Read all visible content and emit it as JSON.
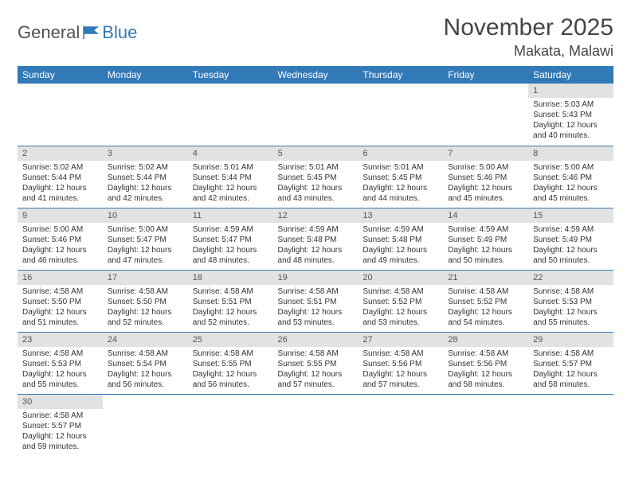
{
  "logo": {
    "text1": "General",
    "text2": "Blue"
  },
  "title": "November 2025",
  "location": "Makata, Malawi",
  "header_color": "#3279b7",
  "daynum_bg": "#e2e2e2",
  "border_color": "#3279b7",
  "weekdays": [
    "Sunday",
    "Monday",
    "Tuesday",
    "Wednesday",
    "Thursday",
    "Friday",
    "Saturday"
  ],
  "weeks": [
    [
      null,
      null,
      null,
      null,
      null,
      null,
      {
        "n": "1",
        "sunrise": "Sunrise: 5:03 AM",
        "sunset": "Sunset: 5:43 PM",
        "day": "Daylight: 12 hours and 40 minutes."
      }
    ],
    [
      {
        "n": "2",
        "sunrise": "Sunrise: 5:02 AM",
        "sunset": "Sunset: 5:44 PM",
        "day": "Daylight: 12 hours and 41 minutes."
      },
      {
        "n": "3",
        "sunrise": "Sunrise: 5:02 AM",
        "sunset": "Sunset: 5:44 PM",
        "day": "Daylight: 12 hours and 42 minutes."
      },
      {
        "n": "4",
        "sunrise": "Sunrise: 5:01 AM",
        "sunset": "Sunset: 5:44 PM",
        "day": "Daylight: 12 hours and 42 minutes."
      },
      {
        "n": "5",
        "sunrise": "Sunrise: 5:01 AM",
        "sunset": "Sunset: 5:45 PM",
        "day": "Daylight: 12 hours and 43 minutes."
      },
      {
        "n": "6",
        "sunrise": "Sunrise: 5:01 AM",
        "sunset": "Sunset: 5:45 PM",
        "day": "Daylight: 12 hours and 44 minutes."
      },
      {
        "n": "7",
        "sunrise": "Sunrise: 5:00 AM",
        "sunset": "Sunset: 5:46 PM",
        "day": "Daylight: 12 hours and 45 minutes."
      },
      {
        "n": "8",
        "sunrise": "Sunrise: 5:00 AM",
        "sunset": "Sunset: 5:46 PM",
        "day": "Daylight: 12 hours and 45 minutes."
      }
    ],
    [
      {
        "n": "9",
        "sunrise": "Sunrise: 5:00 AM",
        "sunset": "Sunset: 5:46 PM",
        "day": "Daylight: 12 hours and 46 minutes."
      },
      {
        "n": "10",
        "sunrise": "Sunrise: 5:00 AM",
        "sunset": "Sunset: 5:47 PM",
        "day": "Daylight: 12 hours and 47 minutes."
      },
      {
        "n": "11",
        "sunrise": "Sunrise: 4:59 AM",
        "sunset": "Sunset: 5:47 PM",
        "day": "Daylight: 12 hours and 48 minutes."
      },
      {
        "n": "12",
        "sunrise": "Sunrise: 4:59 AM",
        "sunset": "Sunset: 5:48 PM",
        "day": "Daylight: 12 hours and 48 minutes."
      },
      {
        "n": "13",
        "sunrise": "Sunrise: 4:59 AM",
        "sunset": "Sunset: 5:48 PM",
        "day": "Daylight: 12 hours and 49 minutes."
      },
      {
        "n": "14",
        "sunrise": "Sunrise: 4:59 AM",
        "sunset": "Sunset: 5:49 PM",
        "day": "Daylight: 12 hours and 50 minutes."
      },
      {
        "n": "15",
        "sunrise": "Sunrise: 4:59 AM",
        "sunset": "Sunset: 5:49 PM",
        "day": "Daylight: 12 hours and 50 minutes."
      }
    ],
    [
      {
        "n": "16",
        "sunrise": "Sunrise: 4:58 AM",
        "sunset": "Sunset: 5:50 PM",
        "day": "Daylight: 12 hours and 51 minutes."
      },
      {
        "n": "17",
        "sunrise": "Sunrise: 4:58 AM",
        "sunset": "Sunset: 5:50 PM",
        "day": "Daylight: 12 hours and 52 minutes."
      },
      {
        "n": "18",
        "sunrise": "Sunrise: 4:58 AM",
        "sunset": "Sunset: 5:51 PM",
        "day": "Daylight: 12 hours and 52 minutes."
      },
      {
        "n": "19",
        "sunrise": "Sunrise: 4:58 AM",
        "sunset": "Sunset: 5:51 PM",
        "day": "Daylight: 12 hours and 53 minutes."
      },
      {
        "n": "20",
        "sunrise": "Sunrise: 4:58 AM",
        "sunset": "Sunset: 5:52 PM",
        "day": "Daylight: 12 hours and 53 minutes."
      },
      {
        "n": "21",
        "sunrise": "Sunrise: 4:58 AM",
        "sunset": "Sunset: 5:52 PM",
        "day": "Daylight: 12 hours and 54 minutes."
      },
      {
        "n": "22",
        "sunrise": "Sunrise: 4:58 AM",
        "sunset": "Sunset: 5:53 PM",
        "day": "Daylight: 12 hours and 55 minutes."
      }
    ],
    [
      {
        "n": "23",
        "sunrise": "Sunrise: 4:58 AM",
        "sunset": "Sunset: 5:53 PM",
        "day": "Daylight: 12 hours and 55 minutes."
      },
      {
        "n": "24",
        "sunrise": "Sunrise: 4:58 AM",
        "sunset": "Sunset: 5:54 PM",
        "day": "Daylight: 12 hours and 56 minutes."
      },
      {
        "n": "25",
        "sunrise": "Sunrise: 4:58 AM",
        "sunset": "Sunset: 5:55 PM",
        "day": "Daylight: 12 hours and 56 minutes."
      },
      {
        "n": "26",
        "sunrise": "Sunrise: 4:58 AM",
        "sunset": "Sunset: 5:55 PM",
        "day": "Daylight: 12 hours and 57 minutes."
      },
      {
        "n": "27",
        "sunrise": "Sunrise: 4:58 AM",
        "sunset": "Sunset: 5:56 PM",
        "day": "Daylight: 12 hours and 57 minutes."
      },
      {
        "n": "28",
        "sunrise": "Sunrise: 4:58 AM",
        "sunset": "Sunset: 5:56 PM",
        "day": "Daylight: 12 hours and 58 minutes."
      },
      {
        "n": "29",
        "sunrise": "Sunrise: 4:58 AM",
        "sunset": "Sunset: 5:57 PM",
        "day": "Daylight: 12 hours and 58 minutes."
      }
    ],
    [
      {
        "n": "30",
        "sunrise": "Sunrise: 4:58 AM",
        "sunset": "Sunset: 5:57 PM",
        "day": "Daylight: 12 hours and 59 minutes."
      },
      null,
      null,
      null,
      null,
      null,
      null
    ]
  ]
}
